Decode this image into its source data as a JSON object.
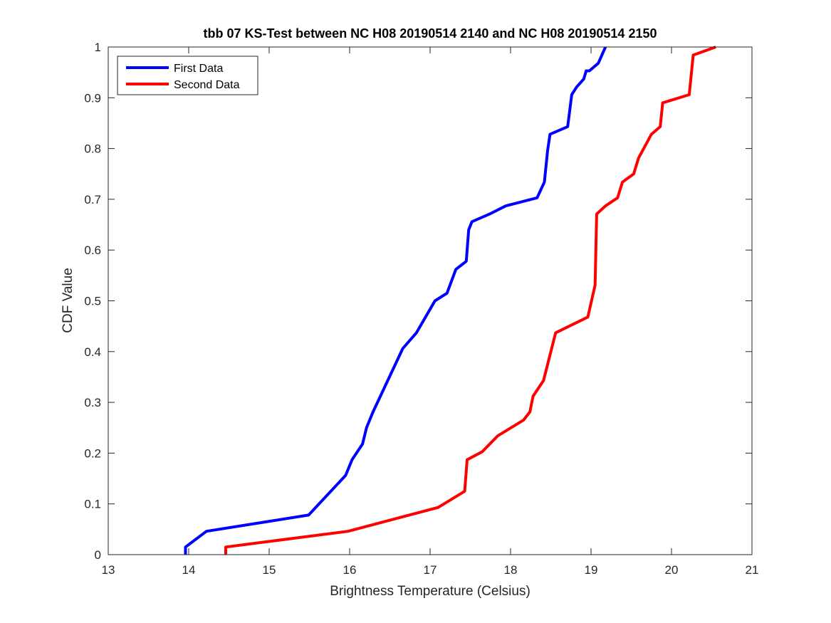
{
  "chart_data": {
    "type": "line",
    "title": "tbb 07 KS-Test between NC H08 20190514 2140 and NC H08 20190514 2150",
    "xlabel": "Brightness Temperature (Celsius)",
    "ylabel": "CDF Value",
    "xlim": [
      13,
      21
    ],
    "ylim": [
      0,
      1
    ],
    "xticks": [
      13,
      14,
      15,
      16,
      17,
      18,
      19,
      20,
      21
    ],
    "yticks": [
      0,
      0.1,
      0.2,
      0.3,
      0.4,
      0.5,
      0.6,
      0.7,
      0.8,
      0.9,
      1
    ],
    "ytick_labels": [
      "0",
      "0.1",
      "0.2",
      "0.3",
      "0.4",
      "0.5",
      "0.6",
      "0.7",
      "0.8",
      "0.9",
      "1"
    ],
    "grid": false,
    "legend_position": "top-left",
    "series": [
      {
        "name": "First Data",
        "color": "#0000ff",
        "x": [
          13.96,
          13.96,
          14.22,
          15.49,
          15.95,
          16.03,
          16.16,
          16.21,
          16.29,
          16.66,
          16.83,
          17.06,
          17.21,
          17.32,
          17.45,
          17.48,
          17.52,
          17.74,
          17.94,
          18.33,
          18.42,
          18.46,
          18.49,
          18.71,
          18.76,
          18.82,
          18.91,
          18.94,
          18.98,
          19.09,
          19.18
        ],
        "y": [
          0,
          0.015,
          0.046,
          0.078,
          0.156,
          0.187,
          0.218,
          0.25,
          0.281,
          0.406,
          0.437,
          0.5,
          0.515,
          0.562,
          0.578,
          0.64,
          0.656,
          0.671,
          0.687,
          0.703,
          0.734,
          0.796,
          0.828,
          0.843,
          0.906,
          0.921,
          0.937,
          0.953,
          0.953,
          0.968,
          1.0
        ]
      },
      {
        "name": "Second Data",
        "color": "#ff0000",
        "x": [
          14.46,
          14.46,
          15.98,
          17.1,
          17.43,
          17.46,
          17.65,
          17.84,
          18.16,
          18.24,
          18.28,
          18.41,
          18.56,
          18.96,
          19.05,
          19.07,
          19.18,
          19.33,
          19.39,
          19.53,
          19.59,
          19.75,
          19.86,
          19.89,
          20.22,
          20.27,
          20.55
        ],
        "y": [
          0,
          0.015,
          0.046,
          0.093,
          0.125,
          0.187,
          0.203,
          0.234,
          0.265,
          0.281,
          0.312,
          0.343,
          0.437,
          0.468,
          0.531,
          0.671,
          0.687,
          0.703,
          0.734,
          0.75,
          0.781,
          0.828,
          0.843,
          0.89,
          0.906,
          0.984,
          1.0
        ]
      }
    ]
  }
}
